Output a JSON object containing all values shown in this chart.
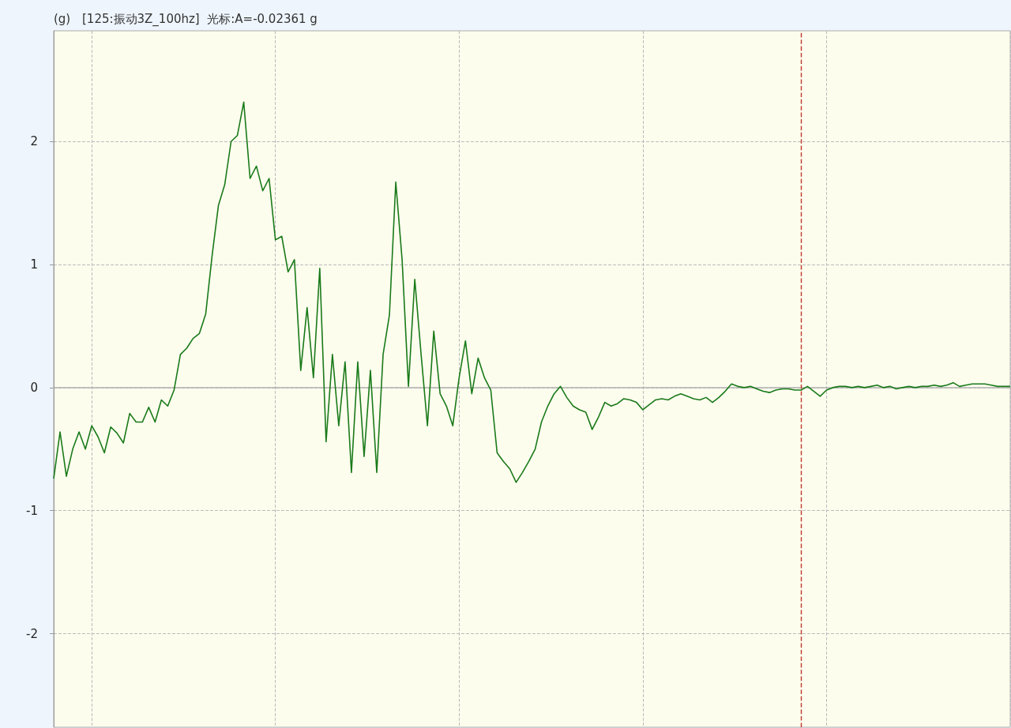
{
  "chart_data": {
    "type": "line",
    "title": "[125:振动3Z_100hz]  光标:A=-0.02361 g",
    "ylabel": "(g)",
    "categories": [
      null,
      null,
      null,
      null,
      null,
      null,
      null,
      null,
      null,
      null,
      null,
      null,
      null,
      null,
      null,
      null,
      null,
      null,
      null,
      null,
      null,
      null,
      null,
      null,
      null,
      null,
      null,
      null,
      null,
      null,
      null,
      null,
      null,
      null,
      null,
      null,
      null,
      null,
      null,
      null,
      null,
      null,
      null,
      null,
      null,
      null,
      null,
      null,
      null,
      null,
      null,
      null,
      null,
      null,
      null,
      null,
      null,
      null,
      null,
      null,
      null,
      null,
      null,
      null,
      null,
      null,
      null,
      null,
      null,
      null,
      null,
      null,
      null,
      null,
      null,
      null,
      null,
      null,
      null,
      null,
      null,
      null,
      null,
      null,
      null,
      null,
      null,
      null,
      null,
      null,
      null,
      null,
      null,
      null,
      null,
      null,
      null,
      null,
      null,
      null,
      null,
      null,
      null,
      null,
      null,
      null,
      null,
      null,
      null,
      null,
      null,
      null,
      null,
      null,
      null,
      null,
      null,
      null,
      null,
      null,
      null,
      null,
      null,
      null,
      null,
      null,
      null,
      null,
      null,
      null,
      null,
      null,
      null,
      null,
      null,
      null,
      null,
      null,
      null,
      null,
      null,
      null,
      null,
      null,
      null,
      null,
      null,
      null,
      null,
      null,
      null,
      null
    ],
    "series": [
      {
        "color": "#1a7a1a",
        "values": [
          -0.74,
          -0.36,
          -0.72,
          -0.5,
          -0.36,
          -0.5,
          -0.31,
          -0.4,
          -0.53,
          -0.32,
          -0.37,
          -0.45,
          -0.21,
          -0.28,
          -0.28,
          -0.16,
          -0.28,
          -0.1,
          -0.15,
          -0.02,
          0.27,
          0.32,
          0.4,
          0.44,
          0.6,
          1.07,
          1.48,
          1.65,
          2.0,
          2.05,
          2.32,
          1.7,
          1.8,
          1.6,
          1.7,
          1.2,
          1.23,
          0.94,
          1.04,
          0.14,
          0.65,
          0.08,
          0.97,
          -0.44,
          0.27,
          -0.31,
          0.21,
          -0.69,
          0.21,
          -0.56,
          0.14,
          -0.69,
          0.27,
          0.59,
          1.67,
          1.04,
          0.01,
          0.88,
          0.27,
          -0.31,
          0.46,
          -0.05,
          -0.15,
          -0.31,
          0.08,
          0.38,
          -0.05,
          0.24,
          0.08,
          -0.02,
          -0.53,
          -0.6,
          -0.66,
          -0.77,
          -0.69,
          -0.6,
          -0.5,
          -0.28,
          -0.15,
          -0.05,
          0.01,
          -0.08,
          -0.15,
          -0.18,
          -0.2,
          -0.34,
          -0.24,
          -0.12,
          -0.15,
          -0.13,
          -0.09,
          -0.1,
          -0.12,
          -0.18,
          -0.14,
          -0.1,
          -0.09,
          -0.1,
          -0.07,
          -0.05,
          -0.07,
          -0.09,
          -0.1,
          -0.08,
          -0.12,
          -0.08,
          -0.03,
          0.03,
          0.01,
          0.0,
          0.01,
          -0.01,
          -0.03,
          -0.04,
          -0.02,
          -0.01,
          -0.01,
          -0.02,
          -0.02,
          0.01,
          -0.03,
          -0.07,
          -0.02,
          0.0,
          0.01,
          0.01,
          0.0,
          0.01,
          0.0,
          0.01,
          0.02,
          0.0,
          0.01,
          -0.01,
          0.0,
          0.01,
          0.0,
          0.01,
          0.01,
          0.02,
          0.01,
          0.02,
          0.04,
          0.01,
          0.02,
          0.03,
          0.03,
          0.03,
          0.02,
          0.01,
          0.01,
          0.01
        ]
      }
    ],
    "ylim": [
      -2.76,
      2.9
    ],
    "yticks": [
      -2,
      -1,
      0,
      1,
      2
    ],
    "tick_labels": "y",
    "grid": true,
    "line_style": "solid"
  }
}
